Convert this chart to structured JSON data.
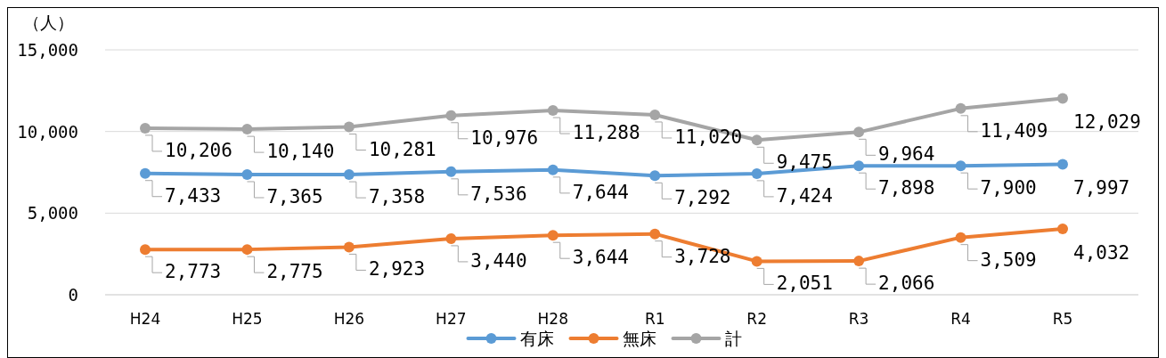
{
  "chart_data": {
    "type": "line",
    "ylabel": "（人）",
    "categories": [
      "H24",
      "H25",
      "H26",
      "H27",
      "H28",
      "R1",
      "R2",
      "R3",
      "R4",
      "R5"
    ],
    "ylim": [
      0,
      15000
    ],
    "yticks": [
      {
        "value": 0,
        "label": "0"
      },
      {
        "value": 5000,
        "label": "5,000"
      },
      {
        "value": 10000,
        "label": "10,000"
      },
      {
        "value": 15000,
        "label": "15,000"
      }
    ],
    "grid": "y",
    "legend": "bottom",
    "marker": "circle",
    "series": [
      {
        "name": "有床",
        "color": "#5b9bd5",
        "values": [
          7433,
          7365,
          7358,
          7536,
          7644,
          7292,
          7424,
          7898,
          7900,
          7997
        ],
        "value_labels": [
          "7,433",
          "7,365",
          "7,358",
          "7,536",
          "7,644",
          "7,292",
          "7,424",
          "7,898",
          "7,900",
          "7,997"
        ]
      },
      {
        "name": "無床",
        "color": "#ed7d31",
        "values": [
          2773,
          2775,
          2923,
          3440,
          3644,
          3728,
          2051,
          2066,
          3509,
          4032
        ],
        "value_labels": [
          "2,773",
          "2,775",
          "2,923",
          "3,440",
          "3,644",
          "3,728",
          "2,051",
          "2,066",
          "3,509",
          "4,032"
        ]
      },
      {
        "name": "計",
        "color": "#a5a5a5",
        "values": [
          10206,
          10140,
          10281,
          10976,
          11288,
          11020,
          9475,
          9964,
          11409,
          12029
        ],
        "value_labels": [
          "10,206",
          "10,140",
          "10,281",
          "10,976",
          "11,288",
          "11,020",
          "9,475",
          "9,964",
          "11,409",
          "12,029"
        ]
      }
    ]
  }
}
